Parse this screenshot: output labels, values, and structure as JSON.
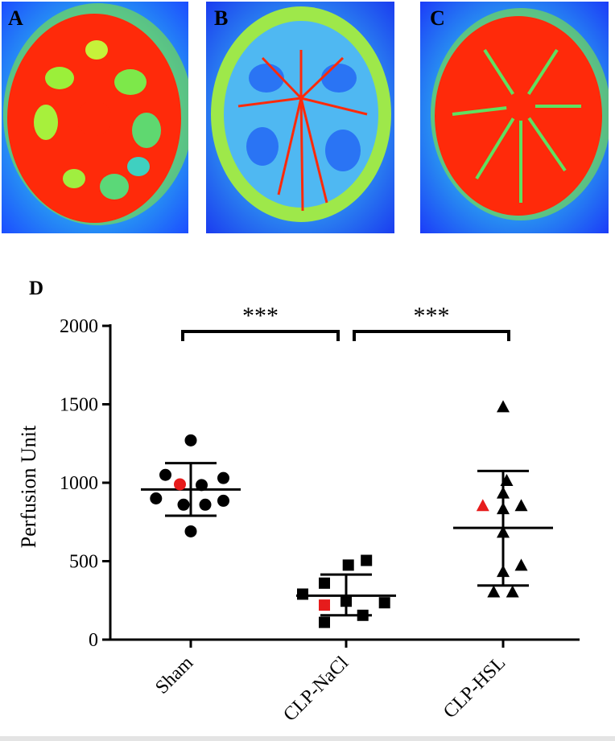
{
  "panels": [
    {
      "label": "A",
      "colors": {
        "background": "#1c5cff",
        "tissue": "#ff2a0a",
        "mid": "#8aee3c"
      }
    },
    {
      "label": "B",
      "colors": {
        "background": "#1c5cff",
        "tissue": "#ff2a0a",
        "mid": "#8aee3c"
      }
    },
    {
      "label": "C",
      "colors": {
        "background": "#1c5cff",
        "tissue": "#ff2a0a",
        "mid": "#8aee3c"
      }
    }
  ],
  "chart_data": {
    "type": "scatter",
    "panel_label": "D",
    "ylabel": "Perfusion Unit",
    "xlabel": "",
    "ylim": [
      0,
      2000
    ],
    "yticks": [
      0,
      500,
      1000,
      1500,
      2000
    ],
    "categories": [
      "Sham",
      "CLP-NaCl",
      "CLP-HSL"
    ],
    "groups": [
      {
        "name": "Sham",
        "marker": "circle",
        "points": [
          {
            "y": 1270,
            "offset": 0.0
          },
          {
            "y": 1050,
            "offset": -0.35
          },
          {
            "y": 1030,
            "offset": 0.45
          },
          {
            "y": 990,
            "offset": -0.15,
            "highlight": true
          },
          {
            "y": 985,
            "offset": 0.15
          },
          {
            "y": 900,
            "offset": -0.48
          },
          {
            "y": 885,
            "offset": 0.45
          },
          {
            "y": 860,
            "offset": -0.1
          },
          {
            "y": 860,
            "offset": 0.2
          },
          {
            "y": 690,
            "offset": 0.0
          }
        ],
        "mean": 957,
        "sd_upper": 1125,
        "sd_lower": 790
      },
      {
        "name": "CLP-NaCl",
        "marker": "square",
        "points": [
          {
            "y": 505,
            "offset": 0.28
          },
          {
            "y": 475,
            "offset": 0.03
          },
          {
            "y": 360,
            "offset": -0.3
          },
          {
            "y": 290,
            "offset": -0.6
          },
          {
            "y": 245,
            "offset": 0.0
          },
          {
            "y": 235,
            "offset": 0.53
          },
          {
            "y": 220,
            "offset": -0.3,
            "highlight": true
          },
          {
            "y": 155,
            "offset": 0.23
          },
          {
            "y": 110,
            "offset": -0.3
          }
        ],
        "mean": 280,
        "sd_upper": 415,
        "sd_lower": 155
      },
      {
        "name": "CLP-HSL",
        "marker": "triangle",
        "points": [
          {
            "y": 1480,
            "offset": 0.0
          },
          {
            "y": 1010,
            "offset": 0.05
          },
          {
            "y": 930,
            "offset": 0.0
          },
          {
            "y": 850,
            "offset": -0.28,
            "highlight": true
          },
          {
            "y": 850,
            "offset": 0.25
          },
          {
            "y": 830,
            "offset": 0.0
          },
          {
            "y": 680,
            "offset": 0.0
          },
          {
            "y": 470,
            "offset": 0.25
          },
          {
            "y": 430,
            "offset": 0.0
          },
          {
            "y": 300,
            "offset": -0.13
          },
          {
            "y": 300,
            "offset": 0.13
          }
        ],
        "mean": 712,
        "sd_upper": 1075,
        "sd_lower": 345
      }
    ],
    "significance": [
      {
        "from": 0,
        "to": 1,
        "label": "***"
      },
      {
        "from": 1,
        "to": 2,
        "label": "***"
      }
    ],
    "colors": {
      "point": "#000000",
      "highlight": "#e61c1c"
    }
  }
}
